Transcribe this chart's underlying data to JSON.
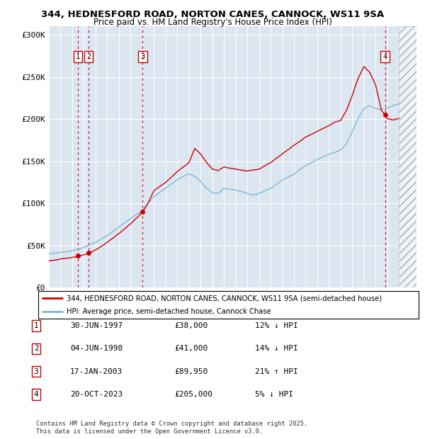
{
  "title_line1": "344, HEDNESFORD ROAD, NORTON CANES, CANNOCK, WS11 9SA",
  "title_line2": "Price paid vs. HM Land Registry's House Price Index (HPI)",
  "bg_color": "#dce6f1",
  "hpi_color": "#7ab3d4",
  "price_color": "#cc0000",
  "ylim": [
    0,
    310000
  ],
  "xlim_start": 1995.0,
  "xlim_end": 2026.5,
  "yticks": [
    0,
    50000,
    100000,
    150000,
    200000,
    250000,
    300000
  ],
  "ytick_labels": [
    "£0",
    "£50K",
    "£100K",
    "£150K",
    "£200K",
    "£250K",
    "£300K"
  ],
  "transactions": [
    {
      "num": 1,
      "date": 1997.5,
      "price": 38000,
      "label": "30-JUN-1997",
      "amount": "£38,000",
      "hpi_rel": "12% ↓ HPI"
    },
    {
      "num": 2,
      "date": 1998.42,
      "price": 41000,
      "label": "04-JUN-1998",
      "amount": "£41,000",
      "hpi_rel": "14% ↓ HPI"
    },
    {
      "num": 3,
      "date": 2003.04,
      "price": 89950,
      "label": "17-JAN-2003",
      "amount": "£89,950",
      "hpi_rel": "21% ↑ HPI"
    },
    {
      "num": 4,
      "date": 2023.8,
      "price": 205000,
      "label": "20-OCT-2023",
      "amount": "£205,000",
      "hpi_rel": "5% ↓ HPI"
    }
  ],
  "legend_label1": "344, HEDNESFORD ROAD, NORTON CANES, CANNOCK, WS11 9SA (semi-detached house)",
  "legend_label2": "HPI: Average price, semi-detached house, Cannock Chase",
  "footer": "Contains HM Land Registry data © Crown copyright and database right 2025.\nThis data is licensed under the Open Government Licence v3.0.",
  "future_cutoff": 2025.0,
  "hpi_keypoints_x": [
    1995.0,
    1996.0,
    1997.0,
    1997.5,
    1998.0,
    1998.5,
    1999.0,
    2000.0,
    2001.0,
    2002.0,
    2003.0,
    2004.0,
    2005.0,
    2006.0,
    2007.0,
    2007.5,
    2008.0,
    2008.5,
    2009.0,
    2009.5,
    2010.0,
    2011.0,
    2012.0,
    2012.5,
    2013.0,
    2014.0,
    2015.0,
    2016.0,
    2017.0,
    2018.0,
    2019.0,
    2019.5,
    2020.0,
    2020.5,
    2021.0,
    2021.5,
    2022.0,
    2022.5,
    2023.0,
    2023.5,
    2024.0,
    2024.5,
    2025.0,
    2026.5
  ],
  "hpi_keypoints_y": [
    40000,
    42000,
    44000,
    46000,
    48000,
    51000,
    54000,
    62000,
    72000,
    82000,
    92000,
    108000,
    118000,
    128000,
    135000,
    132000,
    126000,
    118000,
    113000,
    112000,
    118000,
    116000,
    112000,
    110000,
    112000,
    118000,
    128000,
    135000,
    145000,
    152000,
    158000,
    160000,
    163000,
    170000,
    185000,
    200000,
    212000,
    215000,
    212000,
    210000,
    212000,
    215000,
    217000,
    217000
  ],
  "price_keypoints_x": [
    1995.0,
    1996.0,
    1997.0,
    1997.5,
    1998.0,
    1998.42,
    1998.5,
    1999.0,
    2000.0,
    2001.0,
    2002.0,
    2003.04,
    2003.5,
    2004.0,
    2005.0,
    2006.0,
    2007.0,
    2007.5,
    2008.0,
    2008.5,
    2009.0,
    2009.5,
    2010.0,
    2011.0,
    2012.0,
    2013.0,
    2014.0,
    2015.0,
    2016.0,
    2017.0,
    2018.0,
    2019.0,
    2019.5,
    2020.0,
    2020.5,
    2021.0,
    2021.5,
    2022.0,
    2022.5,
    2023.0,
    2023.5,
    2023.8,
    2024.0,
    2024.5,
    2025.0
  ],
  "price_keypoints_y": [
    33000,
    35000,
    37000,
    38000,
    40000,
    41000,
    42000,
    46000,
    55000,
    65000,
    76000,
    89950,
    100000,
    115000,
    125000,
    138000,
    148000,
    165000,
    158000,
    148000,
    140000,
    138000,
    142000,
    140000,
    138000,
    140000,
    148000,
    158000,
    168000,
    178000,
    185000,
    192000,
    196000,
    198000,
    210000,
    228000,
    248000,
    262000,
    255000,
    240000,
    210000,
    205000,
    200000,
    198000,
    200000
  ]
}
